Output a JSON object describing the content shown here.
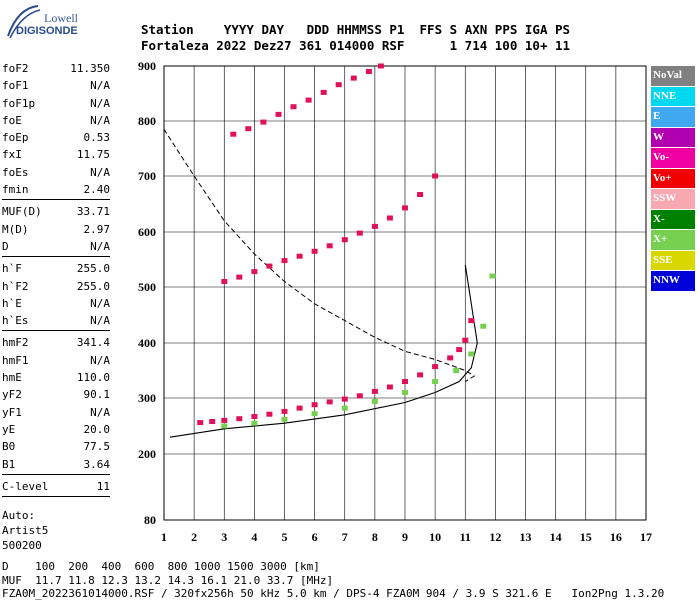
{
  "logo": {
    "line1": "Lowell",
    "line2": "DIGISONDE"
  },
  "header": {
    "labels": [
      "Station",
      "YYYY",
      "DAY",
      "DDD",
      "HHMMSS",
      "P1",
      "FFS",
      "S",
      "AXN",
      "PPS",
      "IGA",
      "PS"
    ],
    "values": [
      "Fortaleza",
      "2022",
      "Dez27",
      "361",
      "014000",
      "RSF",
      "",
      "1",
      "714",
      "100",
      "10+",
      "11"
    ]
  },
  "params": [
    {
      "k": "foF2",
      "v": "11.350"
    },
    {
      "k": "foF1",
      "v": "N/A"
    },
    {
      "k": "foF1p",
      "v": "N/A"
    },
    {
      "k": "foE",
      "v": "N/A"
    },
    {
      "k": "foEp",
      "v": "0.53"
    },
    {
      "k": "fxI",
      "v": "11.75"
    },
    {
      "k": "foEs",
      "v": "N/A"
    },
    {
      "k": "fmin",
      "v": "2.40"
    },
    {
      "sep": true
    },
    {
      "k": "MUF(D)",
      "v": "33.71"
    },
    {
      "k": "M(D)",
      "v": "2.97"
    },
    {
      "k": "D",
      "v": "N/A"
    },
    {
      "sep": true
    },
    {
      "k": "h`F",
      "v": "255.0"
    },
    {
      "k": "h`F2",
      "v": "255.0"
    },
    {
      "k": "h`E",
      "v": "N/A"
    },
    {
      "k": "h`Es",
      "v": "N/A"
    },
    {
      "sep": true
    },
    {
      "k": "hmF2",
      "v": "341.4"
    },
    {
      "k": "hmF1",
      "v": "N/A"
    },
    {
      "k": "hmE",
      "v": "110.0"
    },
    {
      "k": "yF2",
      "v": "90.1"
    },
    {
      "k": "yF1",
      "v": "N/A"
    },
    {
      "k": "yE",
      "v": "20.0"
    },
    {
      "k": "B0",
      "v": "77.5"
    },
    {
      "k": "B1",
      "v": "3.64"
    },
    {
      "sep": true
    },
    {
      "k": "C-level",
      "v": "11"
    },
    {
      "sep": true
    }
  ],
  "auto": {
    "line1": "Auto:",
    "line2": "Artist5",
    "line3": "500200"
  },
  "legend": [
    {
      "label": "NoVal",
      "color": "#808080"
    },
    {
      "label": "NNE",
      "color": "#00d8f0"
    },
    {
      "label": "E",
      "color": "#40a8f0"
    },
    {
      "label": "W",
      "color": "#b000b0"
    },
    {
      "label": "Vo-",
      "color": "#f000a0"
    },
    {
      "label": "Vo+",
      "color": "#f00000"
    },
    {
      "label": "SSW",
      "color": "#f8a8b0"
    },
    {
      "label": "X-",
      "color": "#008000"
    },
    {
      "label": "X+",
      "color": "#78d050"
    },
    {
      "label": "SSE",
      "color": "#d8d800"
    },
    {
      "label": "NNW",
      "color": "#0000d8"
    }
  ],
  "footer": {
    "line1": "D    100  200  400  600  800 1000 1500 3000 [km]",
    "line2": "MUF  11.7 11.8 12.3 13.2 14.3 16.1 21.0 33.7 [MHz]",
    "line3": "FZA0M_2022361014000.RSF / 320fx256h 50 kHz 5.0 km / DPS-4 FZA0M 904 / 3.9 S 321.6 E   Ion2Png 1.3.20"
  },
  "chart_data": {
    "type": "scatter",
    "title": "",
    "xlabel": "",
    "ylabel": "",
    "xlim": [
      1,
      17
    ],
    "ylim": [
      80,
      900
    ],
    "x_ticks": [
      1,
      2,
      3,
      4,
      5,
      6,
      7,
      8,
      9,
      10,
      11,
      12,
      13,
      14,
      15,
      16,
      17
    ],
    "y_ticks": [
      80,
      200,
      300,
      400,
      500,
      600,
      700,
      800,
      900
    ],
    "grid": true,
    "series": [
      {
        "trace": "o-F2",
        "color": "#e0105a",
        "x": [
          2.2,
          2.6,
          3.0,
          3.5,
          4.0,
          4.5,
          5.0,
          5.5,
          6.0,
          6.5,
          7.0,
          7.5,
          8.0,
          8.5,
          9.0,
          9.5,
          10.0,
          10.5,
          10.8,
          11.0,
          11.2
        ],
        "y": [
          256,
          258,
          260,
          263,
          267,
          271,
          276,
          282,
          288,
          293,
          298,
          304,
          312,
          320,
          330,
          342,
          357,
          373,
          388,
          405,
          440
        ]
      },
      {
        "trace": "x-F2",
        "color": "#78d050",
        "x": [
          3.0,
          4.0,
          5.0,
          6.0,
          7.0,
          8.0,
          9.0,
          10.0,
          10.7,
          11.2,
          11.6,
          11.9
        ],
        "y": [
          250,
          255,
          262,
          272,
          282,
          294,
          310,
          330,
          350,
          380,
          430,
          520
        ]
      },
      {
        "trace": "2F2",
        "color": "#e0105a",
        "x": [
          3.0,
          3.5,
          4.0,
          4.5,
          5.0,
          5.5,
          6.0,
          6.5,
          7.0,
          7.5,
          8.0,
          8.5,
          9.0,
          9.5,
          10.0
        ],
        "y": [
          510,
          518,
          528,
          538,
          548,
          556,
          565,
          575,
          586,
          598,
          610,
          625,
          643,
          667,
          700
        ]
      },
      {
        "trace": "3F2",
        "color": "#e0105a",
        "x": [
          3.3,
          3.8,
          4.3,
          4.8,
          5.3,
          5.8,
          6.3,
          6.8,
          7.3,
          7.8,
          8.2
        ],
        "y": [
          776,
          786,
          798,
          812,
          826,
          838,
          852,
          866,
          878,
          890,
          900
        ]
      }
    ],
    "profile_dashed": {
      "x": [
        1.0,
        2.0,
        3.0,
        4.0,
        5.0,
        6.0,
        7.0,
        8.0,
        9.0,
        10.0,
        11.0,
        11.3,
        11.0
      ],
      "y": [
        785,
        700,
        620,
        560,
        510,
        470,
        440,
        410,
        385,
        370,
        350,
        340,
        330
      ]
    },
    "profile_solid": {
      "x": [
        1.2,
        3.0,
        5.0,
        7.0,
        9.0,
        10.0,
        10.8,
        11.2,
        11.4,
        11.2,
        11.0
      ],
      "y": [
        230,
        245,
        255,
        270,
        292,
        310,
        330,
        355,
        400,
        470,
        540
      ]
    }
  }
}
